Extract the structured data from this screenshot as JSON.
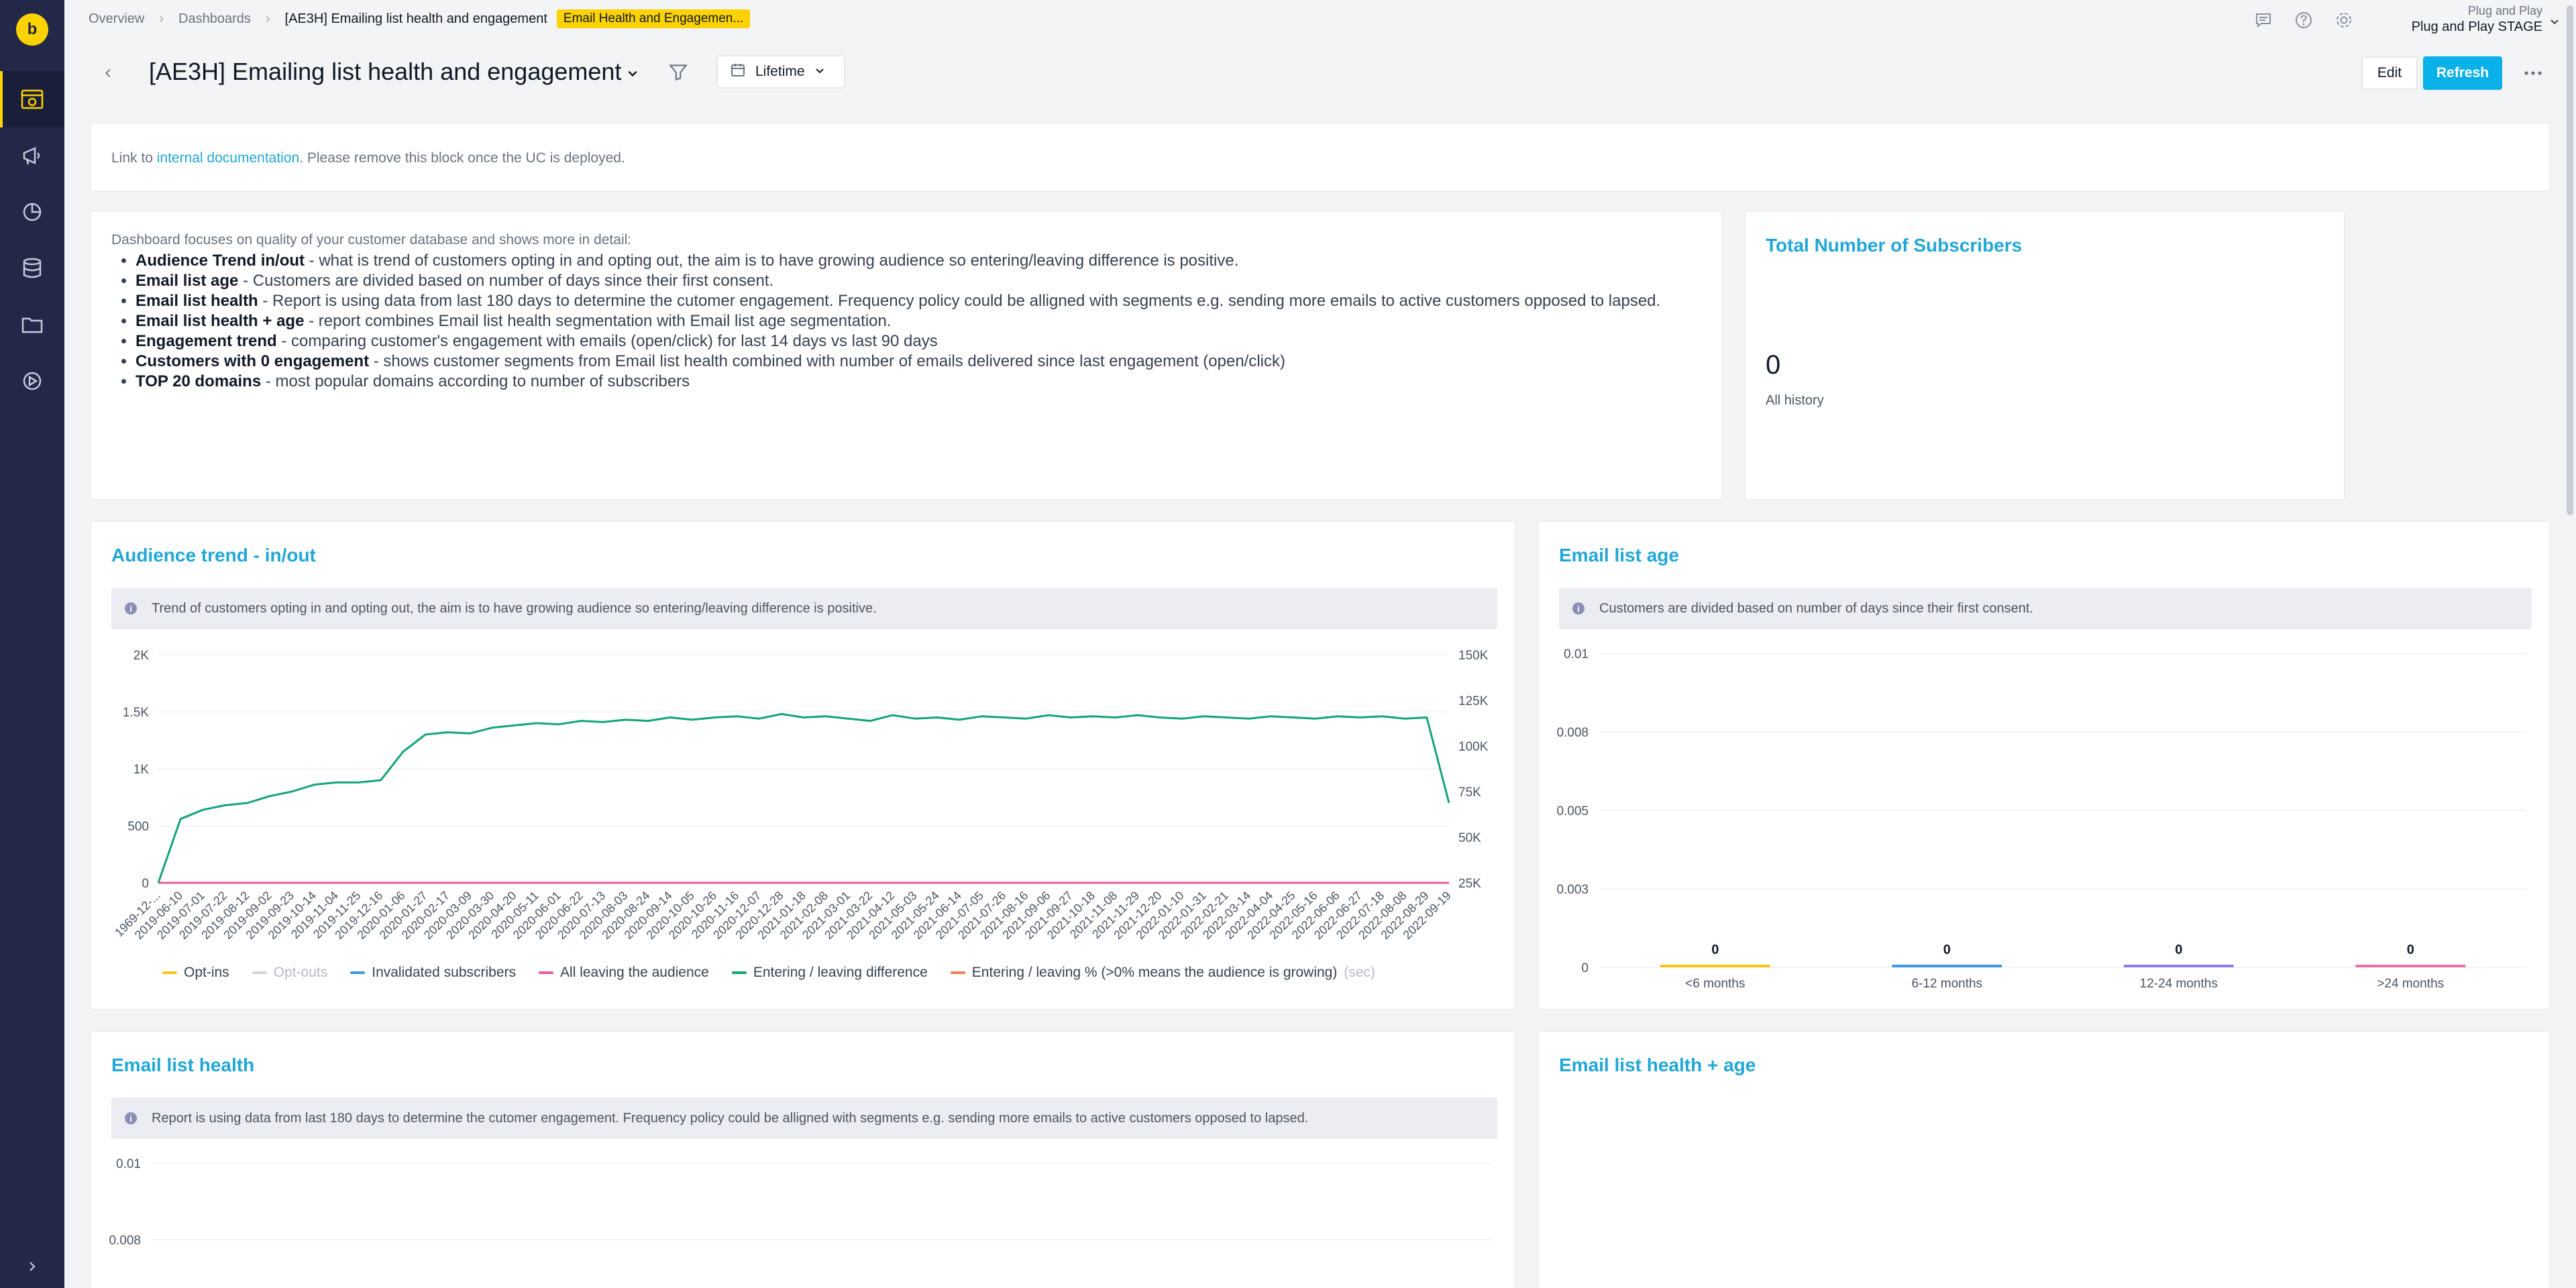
{
  "sidebar": {
    "logo": "b",
    "items": [
      {
        "name": "dashboards-icon"
      },
      {
        "name": "campaigns-icon"
      },
      {
        "name": "analytics-icon"
      },
      {
        "name": "data-icon"
      },
      {
        "name": "assets-icon"
      },
      {
        "name": "ai-icon"
      }
    ],
    "expand_icon": "chevron-right-icon"
  },
  "breadcrumb": {
    "items": [
      "Overview",
      "Dashboards"
    ],
    "current": "[AE3H] Emailing list health and engagement",
    "badge": "Email Health and Engagemen..."
  },
  "account": {
    "org": "Plug and Play",
    "project": "Plug and Play STAGE"
  },
  "title_row": {
    "title": "[AE3H] Emailing list health and engagement",
    "date_range": "Lifetime",
    "edit_label": "Edit",
    "refresh_label": "Refresh"
  },
  "doc_block": {
    "prefix": "Link to ",
    "link": "internal documentation",
    "suffix": ". Please remove this block once the UC is deployed."
  },
  "description": {
    "intro": "Dashboard focuses on quality of your customer database and shows more in detail:",
    "items": [
      {
        "term": "Audience Trend in/out",
        "text": " - what is trend of customers opting in and opting out, the aim is to have growing audience so entering/leaving difference is positive."
      },
      {
        "term": "Email list age",
        "text": " - Customers are divided based on number of days since their first consent."
      },
      {
        "term": "Email list health",
        "text": " - Report is using data from last 180 days to determine the cutomer engagement. Frequency policy could be alligned with segments e.g. sending more emails to active customers opposed to lapsed."
      },
      {
        "term": "Email list health + age",
        "text": " - report combines Email list health segmentation with Email list age segmentation."
      },
      {
        "term": "Engagement trend",
        "text": " - comparing customer's engagement with emails (open/click) for last 14 days vs last 90 days"
      },
      {
        "term": "Customers with 0 engagement",
        "text": " - shows customer segments from Email list health combined with number of emails delivered since last engagement (open/click)"
      },
      {
        "term": "TOP 20 domains",
        "text": " - most popular domains according to number of subscribers"
      }
    ]
  },
  "kpi": {
    "title": "Total Number of Subscribers",
    "value": "0",
    "label": "All history"
  },
  "audience_card": {
    "title": "Audience trend - in/out",
    "notice": "Trend of customers opting in and opting out, the aim is to have growing audience so entering/leaving difference is positive."
  },
  "age_card": {
    "title": "Email list age",
    "notice": "Customers are divided based on number of days since their first consent."
  },
  "health_card": {
    "title": "Email list health",
    "notice": "Report is using data from last 180 days to determine the cutomer engagement. Frequency policy could be alligned with segments e.g. sending more emails to active customers opposed to lapsed."
  },
  "health_age_card": {
    "title": "Email list health + age"
  },
  "legend": [
    {
      "label": "Opt-ins",
      "color": "#f5c518",
      "muted": false,
      "suffix": ""
    },
    {
      "label": "Opt-outs",
      "color": "#d1d5db",
      "muted": true,
      "suffix": ""
    },
    {
      "label": "Invalidated subscribers",
      "color": "#3b9ae1",
      "muted": false,
      "suffix": ""
    },
    {
      "label": "All leaving the audience",
      "color": "#e85d9c",
      "muted": false,
      "suffix": ""
    },
    {
      "label": "Entering / leaving difference",
      "color": "#13a47a",
      "muted": false,
      "suffix": ""
    },
    {
      "label": "Entering / leaving % (>0% means the audience is growing)",
      "color": "#f07e5a",
      "muted": false,
      "suffix": "(sec)"
    }
  ],
  "chart_data": [
    {
      "type": "line",
      "title": "Audience trend - in/out",
      "x": [
        "1969-12-...",
        "2019-06-10",
        "2019-07-01",
        "2019-07-22",
        "2019-08-12",
        "2019-09-02",
        "2019-09-23",
        "2019-10-14",
        "2019-11-04",
        "2019-11-25",
        "2019-12-16",
        "2020-01-06",
        "2020-01-27",
        "2020-02-17",
        "2020-03-09",
        "2020-03-30",
        "2020-04-20",
        "2020-05-11",
        "2020-06-01",
        "2020-06-22",
        "2020-07-13",
        "2020-08-03",
        "2020-08-24",
        "2020-09-14",
        "2020-10-05",
        "2020-10-26",
        "2020-11-16",
        "2020-12-07",
        "2020-12-28",
        "2021-01-18",
        "2021-02-08",
        "2021-03-01",
        "2021-03-22",
        "2021-04-12",
        "2021-05-03",
        "2021-05-24",
        "2021-06-14",
        "2021-07-05",
        "2021-07-26",
        "2021-08-16",
        "2021-09-06",
        "2021-09-27",
        "2021-10-18",
        "2021-11-08",
        "2021-11-29",
        "2021-12-20",
        "2022-01-10",
        "2022-01-31",
        "2022-02-21",
        "2022-03-14",
        "2022-04-04",
        "2022-04-25",
        "2022-05-16",
        "2022-06-06",
        "2022-06-27",
        "2022-07-18",
        "2022-08-08",
        "2022-08-29",
        "2022-09-19"
      ],
      "ylim_left": [
        0,
        2000
      ],
      "yticks_left": [
        "0",
        "500",
        "1K",
        "1.5K",
        "2K"
      ],
      "ylim_right": [
        25000,
        150000
      ],
      "yticks_right": [
        "25K",
        "50K",
        "75K",
        "100K",
        "125K",
        "150K"
      ],
      "series": [
        {
          "name": "Entering / leaving difference",
          "color": "#13a47a",
          "values": [
            0,
            560,
            640,
            680,
            700,
            760,
            800,
            860,
            880,
            880,
            900,
            1150,
            1300,
            1320,
            1310,
            1360,
            1380,
            1400,
            1390,
            1420,
            1410,
            1430,
            1420,
            1450,
            1430,
            1450,
            1460,
            1440,
            1480,
            1450,
            1460,
            1440,
            1420,
            1470,
            1440,
            1450,
            1430,
            1460,
            1450,
            1440,
            1470,
            1450,
            1460,
            1450,
            1470,
            1450,
            1440,
            1460,
            1450,
            1440,
            1460,
            1450,
            1440,
            1460,
            1450,
            1460,
            1440,
            1450,
            700
          ]
        },
        {
          "name": "All leaving the audience",
          "color": "#e85d9c",
          "values": [
            0,
            0,
            0,
            0,
            0,
            0,
            0,
            0,
            0,
            0,
            0,
            0,
            0,
            0,
            0,
            0,
            0,
            0,
            0,
            0,
            0,
            0,
            0,
            0,
            0,
            0,
            0,
            0,
            0,
            0,
            0,
            0,
            0,
            0,
            0,
            0,
            0,
            0,
            0,
            0,
            0,
            0,
            0,
            0,
            0,
            0,
            0,
            0,
            0,
            0,
            0,
            0,
            0,
            0,
            0,
            0,
            0,
            0,
            0
          ]
        }
      ]
    },
    {
      "type": "bar",
      "title": "Email list age",
      "categories": [
        "<6 months",
        "6-12 months",
        "12-24 months",
        ">24 months"
      ],
      "values": [
        0,
        0,
        0,
        0
      ],
      "colors": [
        "#f5c518",
        "#3b9ae1",
        "#8b7ff0",
        "#f06ba6"
      ],
      "ylim": [
        0,
        0.01
      ],
      "yticks": [
        "0",
        "0.003",
        "0.005",
        "0.008",
        "0.01"
      ]
    },
    {
      "type": "bar",
      "title": "Email list health",
      "categories": [],
      "values": [],
      "ylim": [
        0,
        0.01
      ],
      "yticks": [
        "0.01",
        "0.008"
      ]
    }
  ]
}
